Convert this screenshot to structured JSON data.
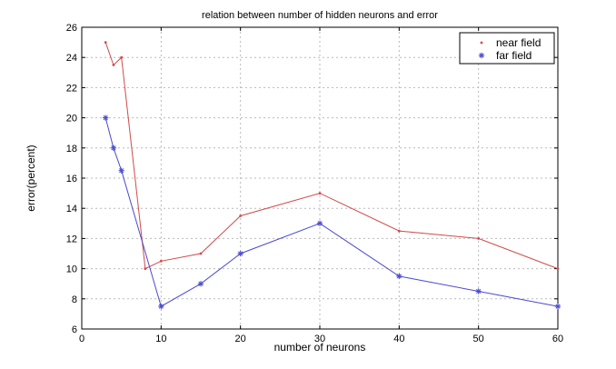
{
  "chart_data": {
    "type": "line",
    "title": "relation between number of hidden neurons and error",
    "xlabel": "number of neurons",
    "ylabel": "error(percent)",
    "xlim": [
      0,
      60
    ],
    "ylim": [
      6,
      26
    ],
    "xticks": [
      0,
      10,
      20,
      30,
      40,
      50,
      60
    ],
    "yticks": [
      6,
      8,
      10,
      12,
      14,
      16,
      18,
      20,
      22,
      24,
      26
    ],
    "grid": true,
    "legend_position": "top-right",
    "series": [
      {
        "name": "near field",
        "color": "#d04a4a",
        "marker": "dot",
        "x": [
          3,
          4,
          5,
          8,
          10,
          15,
          20,
          30,
          40,
          50,
          60
        ],
        "y": [
          25,
          23.5,
          24,
          10,
          10.5,
          11,
          13.5,
          15,
          12.5,
          12,
          10
        ]
      },
      {
        "name": "far field",
        "color": "#4a4ad0",
        "marker": "asterisk",
        "x": [
          3,
          4,
          5,
          10,
          15,
          20,
          30,
          40,
          50,
          60
        ],
        "y": [
          20,
          18,
          16.5,
          7.5,
          9,
          11,
          13,
          9.5,
          8.5,
          7.5
        ]
      }
    ]
  }
}
